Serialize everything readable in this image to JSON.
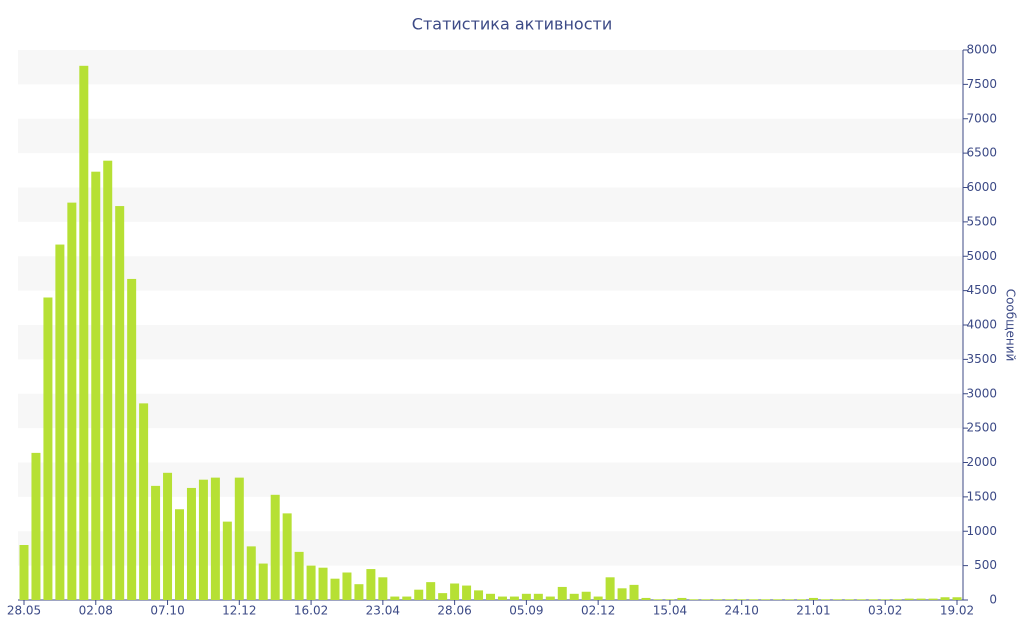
{
  "chart_data": {
    "type": "bar",
    "title": "Статистика активности",
    "y_axis_label": "Сообщений",
    "color": "#b6e034",
    "grid": "bands",
    "y_axis_side": "right",
    "categories": [
      "28.05",
      null,
      null,
      null,
      null,
      null,
      "02.08",
      null,
      null,
      null,
      null,
      null,
      "07.10",
      null,
      null,
      null,
      null,
      null,
      "12.12",
      null,
      null,
      null,
      null,
      null,
      "16.02",
      null,
      null,
      null,
      null,
      null,
      "23.04",
      null,
      null,
      null,
      null,
      null,
      "28.06",
      null,
      null,
      null,
      null,
      null,
      "05.09",
      null,
      null,
      null,
      null,
      null,
      "02.12",
      null,
      null,
      null,
      null,
      null,
      "15.04",
      null,
      null,
      null,
      null,
      null,
      "24.10",
      null,
      null,
      null,
      null,
      null,
      "21.01",
      null,
      null,
      null,
      null,
      null,
      "03.02",
      null,
      null,
      null,
      null,
      null,
      "19.02"
    ],
    "values": [
      800,
      2140,
      4400,
      5170,
      5780,
      7770,
      6230,
      6390,
      5730,
      4670,
      2860,
      1660,
      1850,
      1320,
      1630,
      1750,
      1780,
      1140,
      1780,
      780,
      530,
      1530,
      1260,
      700,
      500,
      470,
      310,
      400,
      230,
      450,
      330,
      50,
      50,
      150,
      260,
      100,
      240,
      210,
      140,
      90,
      50,
      50,
      90,
      90,
      50,
      190,
      90,
      120,
      50,
      330,
      170,
      220,
      30,
      10,
      10,
      30,
      10,
      10,
      10,
      10,
      10,
      10,
      10,
      10,
      10,
      10,
      30,
      10,
      10,
      10,
      10,
      10,
      10,
      10,
      20,
      20,
      20,
      40,
      40
    ],
    "ylim": [
      0,
      8000
    ],
    "yticks": [
      0,
      500,
      1000,
      1500,
      2000,
      2500,
      3000,
      3500,
      4000,
      4500,
      5000,
      5500,
      6000,
      6500,
      7000,
      7500,
      8000
    ]
  }
}
